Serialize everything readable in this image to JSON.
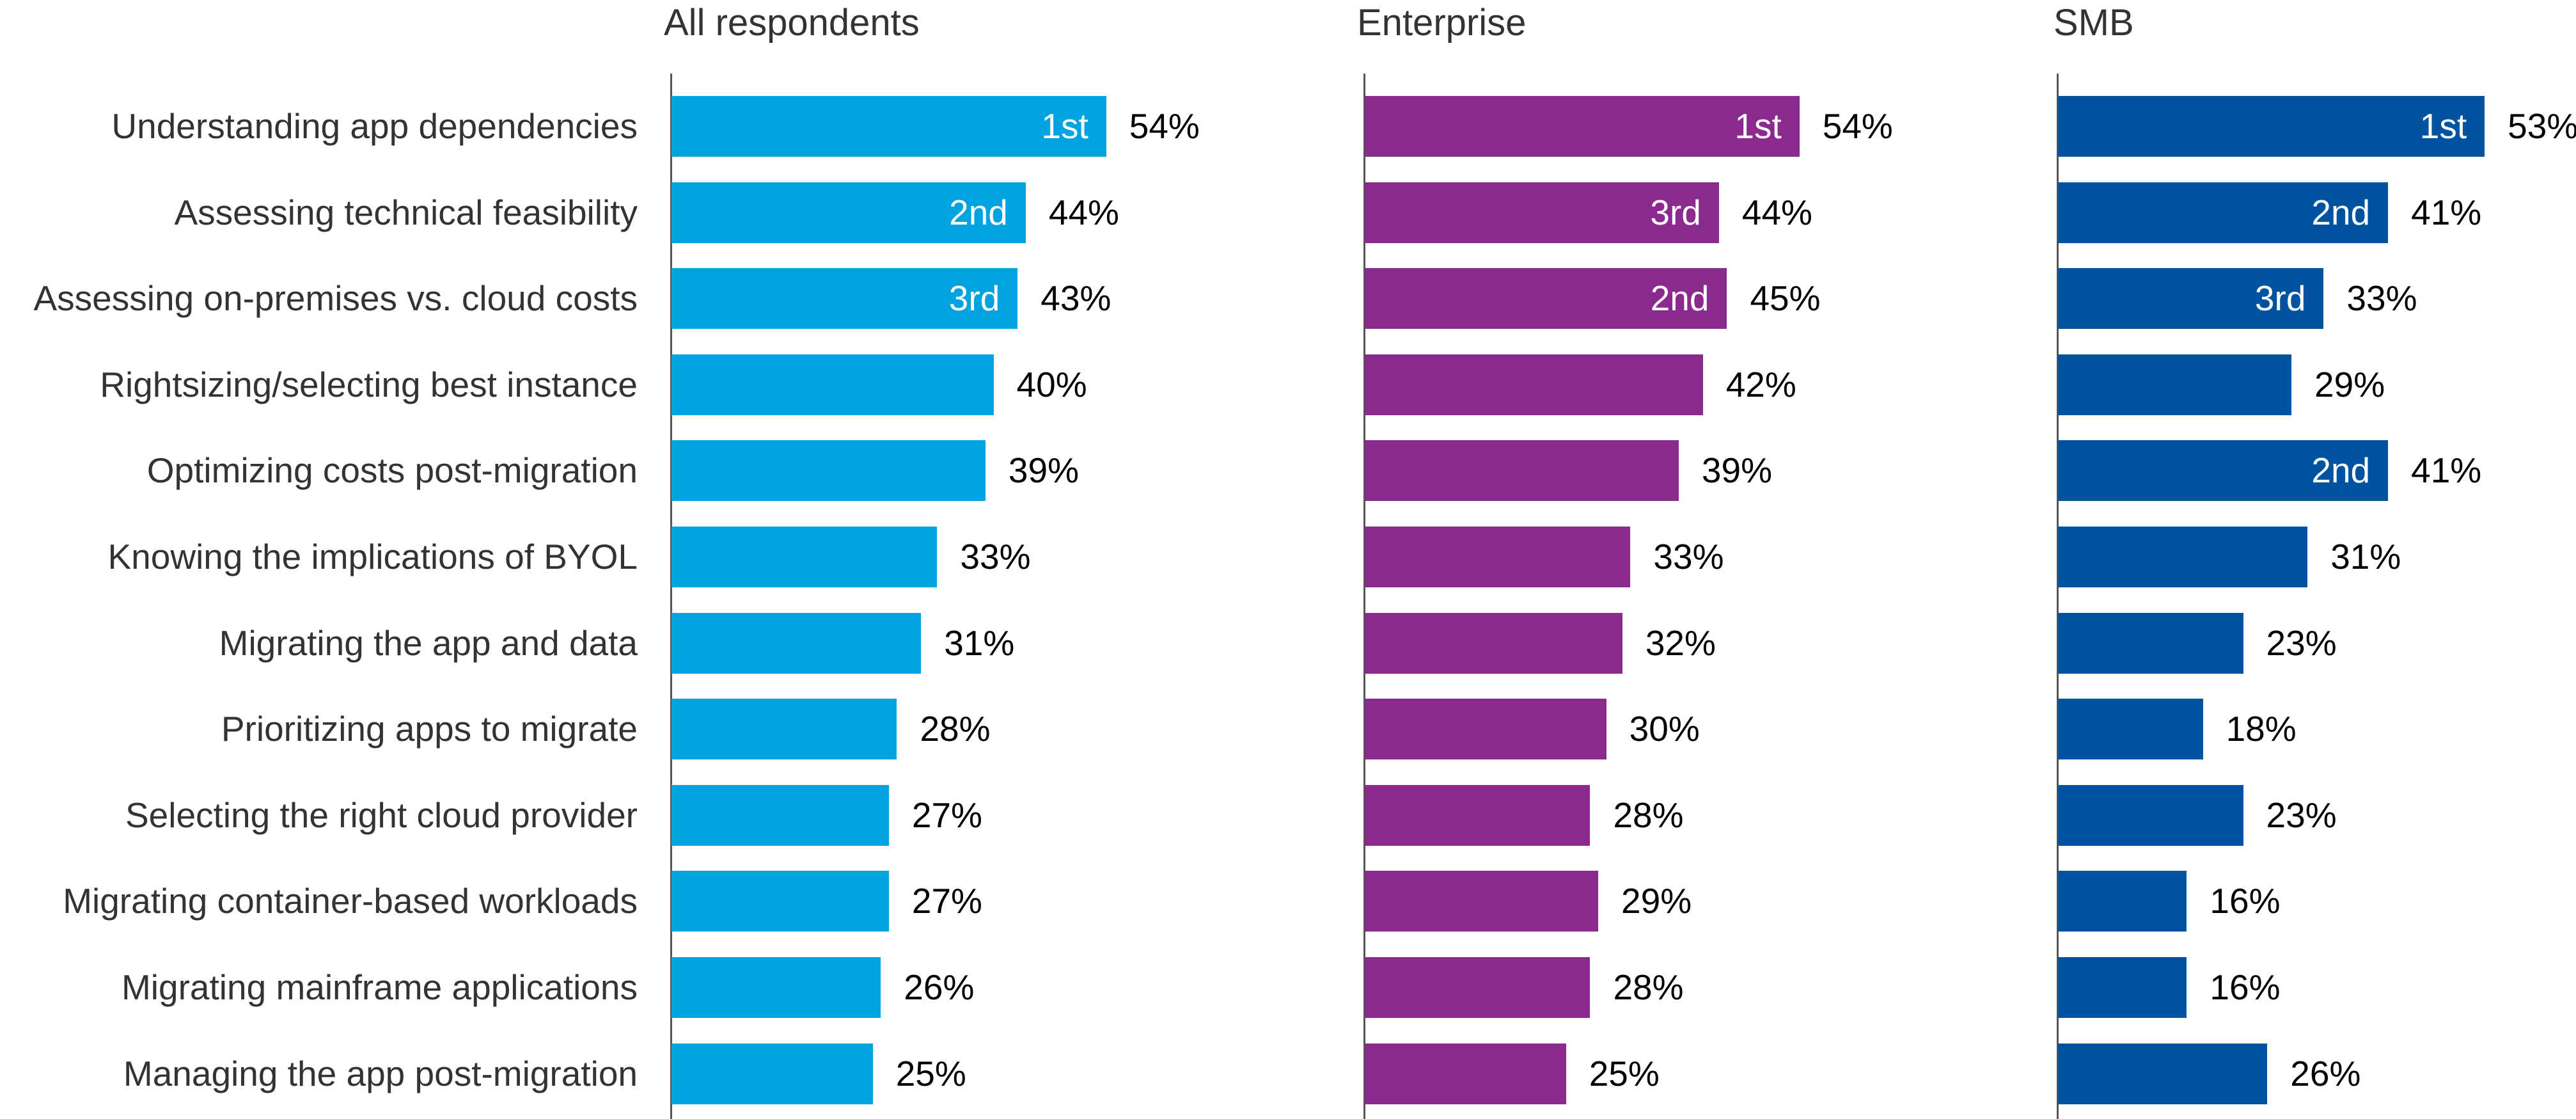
{
  "chart_data": [
    {
      "type": "bar",
      "orientation": "horizontal",
      "title": "All respondents",
      "color": "#03a3e0",
      "categories": [
        "Understanding app dependencies",
        "Assessing technical feasibility",
        "Assessing on-premises vs. cloud costs",
        "Rightsizing/selecting best instance",
        "Optimizing costs post-migration",
        "Knowing the implications of BYOL",
        "Migrating the app and data",
        "Prioritizing apps to migrate",
        "Selecting the right cloud provider",
        "Migrating container-based workloads",
        "Migrating mainframe applications",
        "Managing the app post-migration"
      ],
      "values": [
        54,
        44,
        43,
        40,
        39,
        33,
        31,
        28,
        27,
        27,
        26,
        25
      ],
      "ranks": [
        "1st",
        "2nd",
        "3rd",
        "",
        "",
        "",
        "",
        "",
        "",
        "",
        "",
        ""
      ],
      "value_suffix": "%"
    },
    {
      "type": "bar",
      "orientation": "horizontal",
      "title": "Enterprise",
      "color": "#8b2a8e",
      "values": [
        54,
        44,
        45,
        42,
        39,
        33,
        32,
        30,
        28,
        29,
        28,
        25
      ],
      "ranks": [
        "1st",
        "3rd",
        "2nd",
        "",
        "",
        "",
        "",
        "",
        "",
        "",
        "",
        ""
      ],
      "value_suffix": "%"
    },
    {
      "type": "bar",
      "orientation": "horizontal",
      "title": "SMB",
      "color": "#00539f",
      "values": [
        53,
        41,
        33,
        29,
        41,
        31,
        23,
        18,
        23,
        16,
        16,
        26
      ],
      "ranks": [
        "1st",
        "2nd",
        "3rd",
        "",
        "2nd",
        "",
        "",
        "",
        "",
        "",
        "",
        ""
      ],
      "value_suffix": "%"
    }
  ]
}
